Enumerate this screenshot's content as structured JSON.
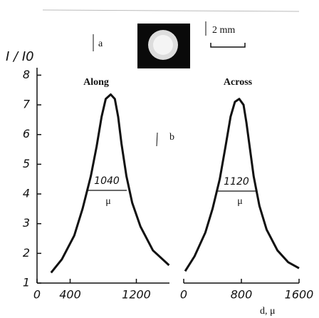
{
  "labels": {
    "panel_a": "a",
    "panel_b": "b",
    "scale": "2 mm",
    "fwhm_along": "1040",
    "fwhm_along_unit": "μ",
    "fwhm_across": "1120",
    "fwhm_across_unit": "μ"
  },
  "chart_data": [
    {
      "type": "line",
      "title": "Along",
      "ylabel": "I / I0",
      "x": [
        170,
        300,
        450,
        550,
        650,
        720,
        780,
        830,
        890,
        940,
        980,
        1020,
        1080,
        1150,
        1250,
        1400,
        1595
      ],
      "series": [
        {
          "color": "#111111",
          "values": [
            1.35,
            1.8,
            2.6,
            3.5,
            4.6,
            5.6,
            6.6,
            7.2,
            7.35,
            7.2,
            6.6,
            5.7,
            4.6,
            3.7,
            2.9,
            2.1,
            1.6
          ]
        }
      ],
      "xlim": [
        0,
        1600
      ],
      "xticks": [
        0,
        400,
        1200
      ],
      "ylim": [
        1,
        8.25
      ],
      "yticks": [
        1,
        2,
        3,
        4,
        5,
        6,
        7,
        8
      ]
    },
    {
      "type": "line",
      "title": "Across",
      "xlabel": "d, μ",
      "x": [
        20,
        150,
        300,
        400,
        500,
        580,
        650,
        710,
        770,
        830,
        870,
        920,
        970,
        1050,
        1150,
        1300,
        1450,
        1600
      ],
      "series": [
        {
          "color": "#111111",
          "values": [
            1.4,
            1.9,
            2.7,
            3.5,
            4.5,
            5.6,
            6.6,
            7.1,
            7.2,
            7.0,
            6.4,
            5.5,
            4.6,
            3.6,
            2.8,
            2.1,
            1.7,
            1.5
          ]
        }
      ],
      "xlim": [
        0,
        1600
      ],
      "xticks": [
        0,
        800,
        1600
      ],
      "ylim": [
        1,
        8.25
      ]
    }
  ]
}
